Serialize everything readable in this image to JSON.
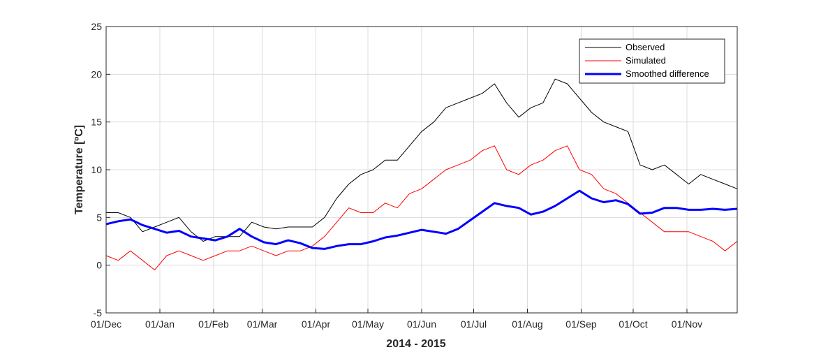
{
  "chart_data": {
    "type": "line",
    "xlabel": "2014 - 2015",
    "ylabel": "Temperature [ºC]",
    "ylim": [
      -5,
      25
    ],
    "yticks": [
      -5,
      0,
      5,
      10,
      15,
      20,
      25
    ],
    "xlim": [
      "2014-12-01",
      "2015-11-30"
    ],
    "xticks": [
      {
        "date": "2014-12-01",
        "label": "01/Dec"
      },
      {
        "date": "2015-01-01",
        "label": "01/Jan"
      },
      {
        "date": "2015-02-01",
        "label": "01/Feb"
      },
      {
        "date": "2015-03-01",
        "label": "01/Mar"
      },
      {
        "date": "2015-04-01",
        "label": "01/Apr"
      },
      {
        "date": "2015-05-01",
        "label": "01/May"
      },
      {
        "date": "2015-06-01",
        "label": "01/Jun"
      },
      {
        "date": "2015-07-01",
        "label": "01/Jul"
      },
      {
        "date": "2015-08-01",
        "label": "01/Aug"
      },
      {
        "date": "2015-09-01",
        "label": "01/Sep"
      },
      {
        "date": "2015-10-01",
        "label": "01/Oct"
      },
      {
        "date": "2015-11-01",
        "label": "01/Nov"
      }
    ],
    "grid": true,
    "legend_position": "top-right",
    "series": [
      {
        "name": "Observed",
        "color": "#000000",
        "x": [
          "2014-12-01",
          "2014-12-08",
          "2014-12-15",
          "2014-12-22",
          "2014-12-29",
          "2015-01-05",
          "2015-01-12",
          "2015-01-19",
          "2015-01-26",
          "2015-02-02",
          "2015-02-09",
          "2015-02-16",
          "2015-02-23",
          "2015-03-02",
          "2015-03-09",
          "2015-03-16",
          "2015-03-23",
          "2015-03-30",
          "2015-04-06",
          "2015-04-13",
          "2015-04-20",
          "2015-04-27",
          "2015-05-04",
          "2015-05-11",
          "2015-05-18",
          "2015-05-25",
          "2015-06-01",
          "2015-06-08",
          "2015-06-15",
          "2015-06-22",
          "2015-06-29",
          "2015-07-06",
          "2015-07-13",
          "2015-07-20",
          "2015-07-27",
          "2015-08-03",
          "2015-08-10",
          "2015-08-17",
          "2015-08-24",
          "2015-08-31",
          "2015-09-07",
          "2015-09-14",
          "2015-09-21",
          "2015-09-28",
          "2015-10-05",
          "2015-10-12",
          "2015-10-19",
          "2015-10-26",
          "2015-11-02",
          "2015-11-09",
          "2015-11-16",
          "2015-11-23",
          "2015-11-30"
        ],
        "y": [
          5.5,
          5.5,
          5.0,
          3.5,
          4.0,
          4.5,
          5.0,
          3.5,
          2.5,
          3.0,
          3.0,
          3.0,
          4.5,
          4.0,
          3.8,
          4.0,
          4.0,
          4.0,
          5.0,
          7.0,
          8.5,
          9.5,
          10.0,
          11.0,
          11.0,
          12.5,
          14.0,
          15.0,
          16.5,
          17.0,
          17.5,
          18.0,
          19.0,
          17.0,
          15.5,
          16.5,
          17.0,
          19.5,
          19.0,
          17.5,
          16.0,
          15.0,
          14.5,
          14.0,
          10.5,
          10.0,
          10.5,
          9.5,
          8.5,
          9.5,
          9.0,
          8.5,
          8.0
        ]
      },
      {
        "name": "Simulated",
        "color": "#ff0000",
        "x": [
          "2014-12-01",
          "2014-12-08",
          "2014-12-15",
          "2014-12-22",
          "2014-12-29",
          "2015-01-05",
          "2015-01-12",
          "2015-01-19",
          "2015-01-26",
          "2015-02-02",
          "2015-02-09",
          "2015-02-16",
          "2015-02-23",
          "2015-03-02",
          "2015-03-09",
          "2015-03-16",
          "2015-03-23",
          "2015-03-30",
          "2015-04-06",
          "2015-04-13",
          "2015-04-20",
          "2015-04-27",
          "2015-05-04",
          "2015-05-11",
          "2015-05-18",
          "2015-05-25",
          "2015-06-01",
          "2015-06-08",
          "2015-06-15",
          "2015-06-22",
          "2015-06-29",
          "2015-07-06",
          "2015-07-13",
          "2015-07-20",
          "2015-07-27",
          "2015-08-03",
          "2015-08-10",
          "2015-08-17",
          "2015-08-24",
          "2015-08-31",
          "2015-09-07",
          "2015-09-14",
          "2015-09-21",
          "2015-09-28",
          "2015-10-05",
          "2015-10-12",
          "2015-10-19",
          "2015-10-26",
          "2015-11-02",
          "2015-11-09",
          "2015-11-16",
          "2015-11-23",
          "2015-11-30"
        ],
        "y": [
          1.0,
          0.5,
          1.5,
          0.5,
          -0.5,
          1.0,
          1.5,
          1.0,
          0.5,
          1.0,
          1.5,
          1.5,
          2.0,
          1.5,
          1.0,
          1.5,
          1.5,
          2.0,
          3.0,
          4.5,
          6.0,
          5.5,
          5.5,
          6.5,
          6.0,
          7.5,
          8.0,
          9.0,
          10.0,
          10.5,
          11.0,
          12.0,
          12.5,
          10.0,
          9.5,
          10.5,
          11.0,
          12.0,
          12.5,
          10.0,
          9.5,
          8.0,
          7.5,
          6.5,
          5.5,
          4.5,
          3.5,
          3.5,
          3.5,
          3.0,
          2.5,
          1.5,
          2.5
        ]
      },
      {
        "name": "Smoothed difference",
        "color": "#0000ff",
        "x": [
          "2014-12-01",
          "2014-12-08",
          "2014-12-15",
          "2014-12-22",
          "2014-12-29",
          "2015-01-05",
          "2015-01-12",
          "2015-01-19",
          "2015-01-26",
          "2015-02-02",
          "2015-02-09",
          "2015-02-16",
          "2015-02-23",
          "2015-03-02",
          "2015-03-09",
          "2015-03-16",
          "2015-03-23",
          "2015-03-30",
          "2015-04-06",
          "2015-04-13",
          "2015-04-20",
          "2015-04-27",
          "2015-05-04",
          "2015-05-11",
          "2015-05-18",
          "2015-05-25",
          "2015-06-01",
          "2015-06-08",
          "2015-06-15",
          "2015-06-22",
          "2015-06-29",
          "2015-07-06",
          "2015-07-13",
          "2015-07-20",
          "2015-07-27",
          "2015-08-03",
          "2015-08-10",
          "2015-08-17",
          "2015-08-24",
          "2015-08-31",
          "2015-09-07",
          "2015-09-14",
          "2015-09-21",
          "2015-09-28",
          "2015-10-05",
          "2015-10-12",
          "2015-10-19",
          "2015-10-26",
          "2015-11-02",
          "2015-11-09",
          "2015-11-16",
          "2015-11-23",
          "2015-11-30"
        ],
        "y": [
          4.3,
          4.6,
          4.8,
          4.2,
          3.8,
          3.4,
          3.6,
          3.0,
          2.8,
          2.6,
          3.0,
          3.8,
          3.0,
          2.4,
          2.2,
          2.6,
          2.3,
          1.8,
          1.7,
          2.0,
          2.2,
          2.2,
          2.5,
          2.9,
          3.1,
          3.4,
          3.7,
          3.5,
          3.3,
          3.8,
          4.7,
          5.6,
          6.5,
          6.2,
          6.0,
          5.3,
          5.6,
          6.2,
          7.0,
          7.8,
          7.0,
          6.6,
          6.8,
          6.4,
          5.4,
          5.5,
          6.0,
          6.0,
          5.8,
          5.8,
          5.9,
          5.8,
          5.9
        ]
      }
    ]
  }
}
